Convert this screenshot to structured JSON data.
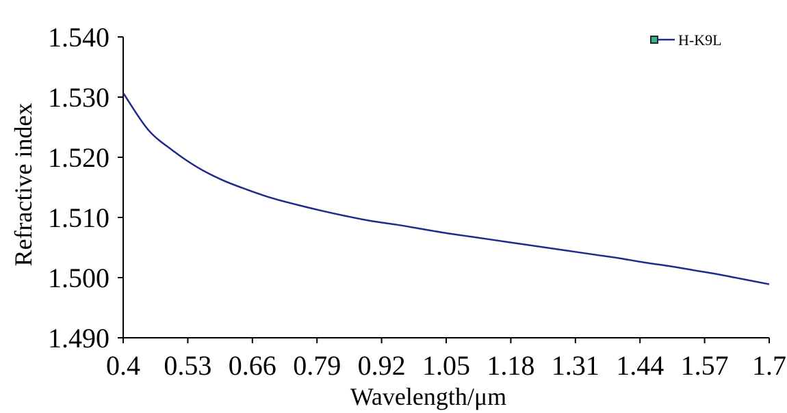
{
  "chart_data": {
    "type": "line",
    "title": "",
    "xlabel": "Wavelength/μm",
    "ylabel": "Refractive index",
    "xlim": [
      0.4,
      1.7
    ],
    "ylim": [
      1.49,
      1.54
    ],
    "x_ticks": [
      "0.4",
      "0.53",
      "0.66",
      "0.79",
      "0.92",
      "1.05",
      "1.18",
      "1.31",
      "1.44",
      "1.57",
      "1.7"
    ],
    "y_ticks": [
      "1.490",
      "1.500",
      "1.510",
      "1.520",
      "1.530",
      "1.540"
    ],
    "grid": false,
    "legend_position": "top-right",
    "series": [
      {
        "name": "H-K9L",
        "color": "#1f2a8a",
        "x": [
          0.4,
          0.45,
          0.5,
          0.55,
          0.6,
          0.65,
          0.7,
          0.75,
          0.8,
          0.85,
          0.9,
          0.95,
          1.0,
          1.05,
          1.1,
          1.15,
          1.2,
          1.25,
          1.3,
          1.35,
          1.4,
          1.45,
          1.5,
          1.55,
          1.6,
          1.65,
          1.7
        ],
        "y": [
          1.5307,
          1.5246,
          1.5211,
          1.5183,
          1.5162,
          1.5146,
          1.5132,
          1.5121,
          1.5111,
          1.5102,
          1.5094,
          1.5088,
          1.5081,
          1.5074,
          1.5068,
          1.5062,
          1.5056,
          1.505,
          1.5044,
          1.5038,
          1.5032,
          1.5025,
          1.5019,
          1.5012,
          1.5005,
          1.4997,
          1.4989
        ]
      }
    ]
  }
}
